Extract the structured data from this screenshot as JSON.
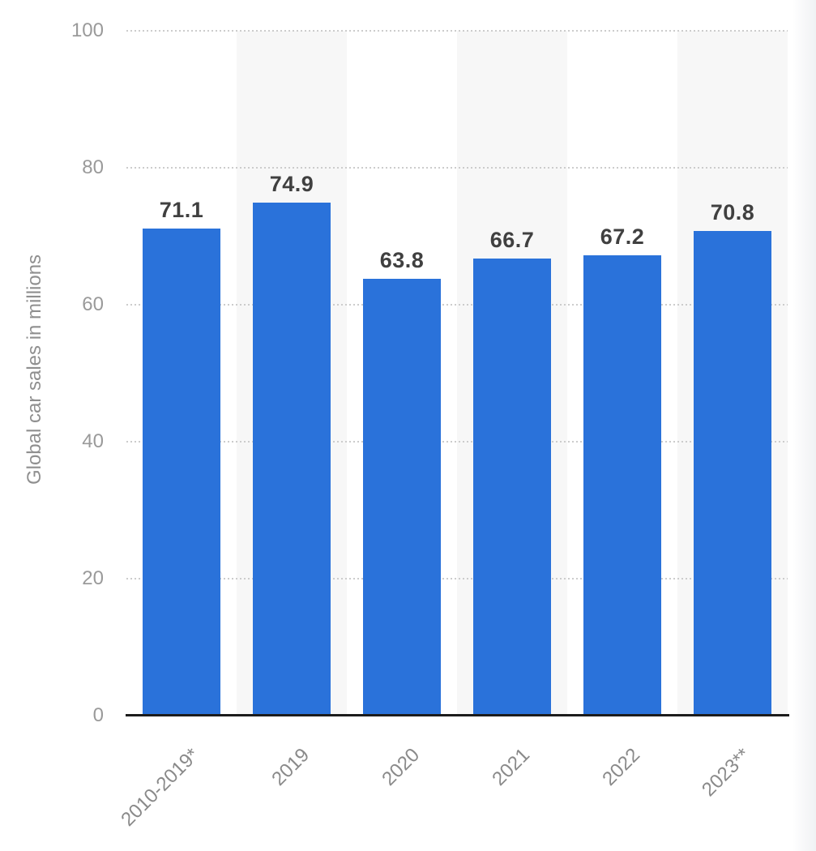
{
  "chart_data": {
    "type": "bar",
    "categories": [
      "2010-2019*",
      "2019",
      "2020",
      "2021",
      "2022",
      "2023**"
    ],
    "values": [
      71.1,
      74.9,
      63.8,
      66.7,
      67.2,
      70.8
    ],
    "value_labels": [
      "71.1",
      "74.9",
      "63.8",
      "66.7",
      "67.2",
      "70.8"
    ],
    "title": "",
    "xlabel": "",
    "ylabel": "Global car sales in millions",
    "ylim": [
      0,
      100
    ],
    "yticks": [
      100,
      80,
      60,
      40,
      20,
      0
    ],
    "grid": "horizontal-dotted",
    "legend": "none",
    "colors": {
      "bar": "#2a72da",
      "column_stripe": "#f7f7f7",
      "gridline": "#cccccc",
      "tick_label": "#9a9a9a",
      "axis_title": "#8f8f8f",
      "value_label": "#404040",
      "axis_line": "#1c1c1c"
    }
  }
}
